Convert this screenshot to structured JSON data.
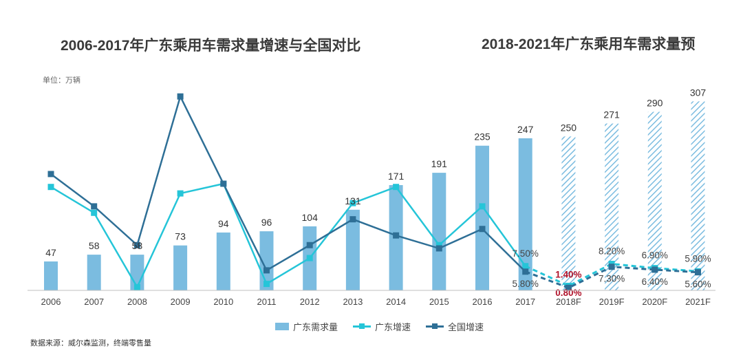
{
  "titles": {
    "left": "2006-2017年广东乘用车需求量增速与全国对比",
    "right": "2018-2021年广东乘用车需求量预"
  },
  "unit": "单位：万辆",
  "source": "数据来源：威尔森监测，终端零售量",
  "colors": {
    "bar": "#7bbce0",
    "forecast_hatch": "#7bbce0",
    "gd_growth": "#25c5d8",
    "national_growth": "#2e6f96",
    "highlight": "#b0122a"
  },
  "chart_data": {
    "type": "bar",
    "categories": [
      "2006",
      "2007",
      "2008",
      "2009",
      "2010",
      "2011",
      "2012",
      "2013",
      "2014",
      "2015",
      "2016",
      "2017",
      "2018F",
      "2019F",
      "2020F",
      "2021F"
    ],
    "forecast_from_index": 12,
    "series": [
      {
        "name": "广东需求量",
        "kind": "bar",
        "values": [
          47,
          58,
          58,
          73,
          94,
          96,
          104,
          131,
          171,
          191,
          235,
          247,
          250,
          271,
          290,
          307
        ]
      },
      {
        "name": "广东增速",
        "kind": "line",
        "values": [
          0.32,
          0.24,
          0.01,
          0.3,
          0.33,
          0.02,
          0.1,
          0.27,
          0.32,
          0.14,
          0.26,
          0.075,
          0.014,
          0.082,
          0.069,
          0.059
        ]
      },
      {
        "name": "全国增速",
        "kind": "line",
        "values": [
          0.36,
          0.26,
          0.14,
          0.6,
          0.33,
          0.062,
          0.14,
          0.22,
          0.17,
          0.13,
          0.19,
          0.058,
          0.008,
          0.073,
          0.064,
          0.056
        ]
      }
    ],
    "bar_labels": [
      "47",
      "58",
      "58",
      "73",
      "94",
      "96",
      "104",
      "131",
      "171",
      "191",
      "235",
      "247",
      "250",
      "271",
      "290",
      "307"
    ],
    "rate_labels": [
      {
        "index": 11,
        "series": "广东增速",
        "text": "7.50%"
      },
      {
        "index": 11,
        "series": "全国增速",
        "text": "5.80%"
      },
      {
        "index": 12,
        "series": "广东增速",
        "text": "1.40%",
        "highlight": true
      },
      {
        "index": 12,
        "series": "全国增速",
        "text": "0.80%",
        "highlight": true
      },
      {
        "index": 13,
        "series": "广东增速",
        "text": "8.20%"
      },
      {
        "index": 13,
        "series": "全国增速",
        "text": "7.30%"
      },
      {
        "index": 14,
        "series": "广东增速",
        "text": "6.90%"
      },
      {
        "index": 14,
        "series": "全国增速",
        "text": "6.40%"
      },
      {
        "index": 15,
        "series": "广东增速",
        "text": "5.90%"
      },
      {
        "index": 15,
        "series": "全国增速",
        "text": "5.60%"
      }
    ],
    "legend": [
      "广东需求量",
      "广东增速",
      "全国增速"
    ],
    "legend_position": "bottom",
    "bar_ylim": [
      0,
      380
    ],
    "rate_ylim": [
      0,
      0.66
    ],
    "grid": false
  }
}
